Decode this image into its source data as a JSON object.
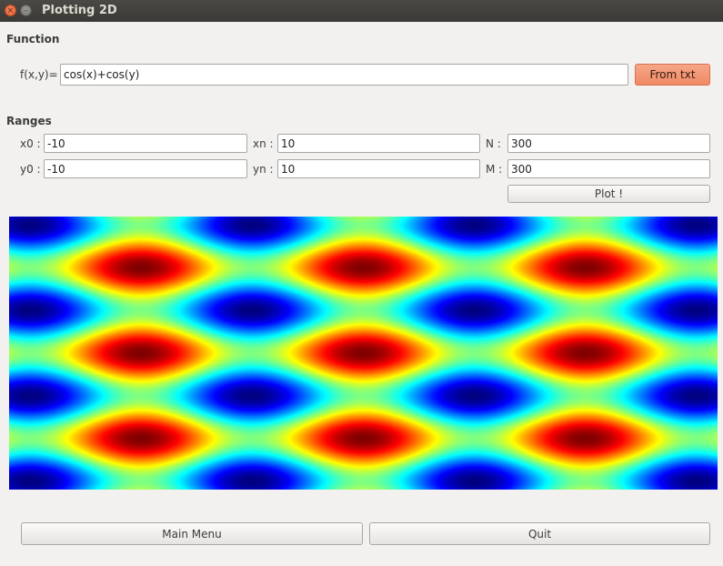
{
  "window": {
    "title": "Plotting 2D",
    "close_glyph": "×",
    "min_glyph": "–"
  },
  "function": {
    "section": "Function",
    "label": "f(x,y)=",
    "value": "cos(x)+cos(y)",
    "from_txt_label": "From txt",
    "accent_color": "#ef8a64"
  },
  "ranges": {
    "section": "Ranges",
    "x0": {
      "label": "x0 :",
      "value": "-10"
    },
    "xn": {
      "label": "xn :",
      "value": "10"
    },
    "N": {
      "label": "N :",
      "value": "300"
    },
    "y0": {
      "label": "y0 :",
      "value": "-10"
    },
    "yn": {
      "label": "yn :",
      "value": "10"
    },
    "M": {
      "label": "M :",
      "value": "300"
    },
    "plot_label": "Plot !"
  },
  "chart_data": {
    "type": "heatmap",
    "function": "cos(x)+cos(y)",
    "x_range": [
      -10,
      10
    ],
    "y_range": [
      -10,
      10
    ],
    "resolution": [
      300,
      300
    ],
    "z_range": [
      -2,
      2
    ],
    "colormap": "jet",
    "axes_visible": false
  },
  "footer": {
    "main_menu_label": "Main Menu",
    "quit_label": "Quit"
  }
}
